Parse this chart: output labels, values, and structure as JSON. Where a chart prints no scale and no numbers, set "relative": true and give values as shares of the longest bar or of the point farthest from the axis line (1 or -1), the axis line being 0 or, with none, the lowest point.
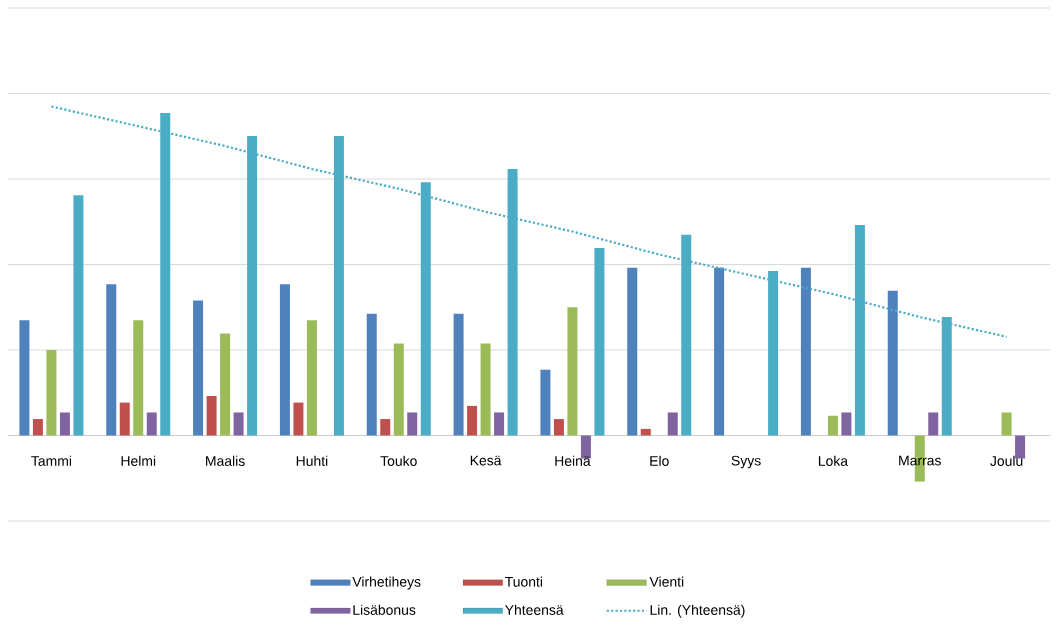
{
  "chart_data": {
    "type": "bar",
    "relative": true,
    "grid": "y",
    "legend": "bottom",
    "categories": [
      "Tammi",
      "Helmi",
      "Maalis",
      "Huhti",
      "Touko",
      "Kesä",
      "Heinä",
      "Elo",
      "Syys",
      "Loka",
      "Marras",
      "Joulu"
    ],
    "series": [
      {
        "name": "Virhetiheys",
        "color": "#4f81bd",
        "values": [
          0.35,
          0.46,
          0.41,
          0.46,
          0.37,
          0.37,
          0.2,
          0.51,
          0.51,
          0.51,
          0.44,
          0
        ]
      },
      {
        "name": "Tuonti",
        "color": "#c0504d",
        "values": [
          0.05,
          0.1,
          0.12,
          0.1,
          0.05,
          0.09,
          0.05,
          0.02,
          0,
          0,
          0,
          0
        ]
      },
      {
        "name": "Vienti",
        "color": "#9bbb59",
        "values": [
          0.26,
          0.35,
          0.31,
          0.35,
          0.28,
          0.28,
          0.39,
          0,
          0,
          0.06,
          -0.14,
          0.07
        ]
      },
      {
        "name": "Lisäbonus",
        "color": "#8064a2",
        "values": [
          0.07,
          0.07,
          0.07,
          0,
          0.07,
          0.07,
          -0.07,
          0.07,
          0,
          0.07,
          0.07,
          -0.07
        ]
      },
      {
        "name": "Yhteensä",
        "color": "#4bacc6",
        "values": [
          0.73,
          0.98,
          0.91,
          0.91,
          0.77,
          0.81,
          0.57,
          0.61,
          0.5,
          0.64,
          0.36,
          0
        ]
      },
      {
        "name": "Lin. (Yhteensä)",
        "type": "line",
        "line_style": "dotted",
        "marker": "none",
        "color": "#4bacc6",
        "values": [
          1,
          0.94,
          0.88,
          0.81,
          0.75,
          0.68,
          0.62,
          0.55,
          0.49,
          0.43,
          0.36,
          0.3
        ]
      }
    ]
  }
}
